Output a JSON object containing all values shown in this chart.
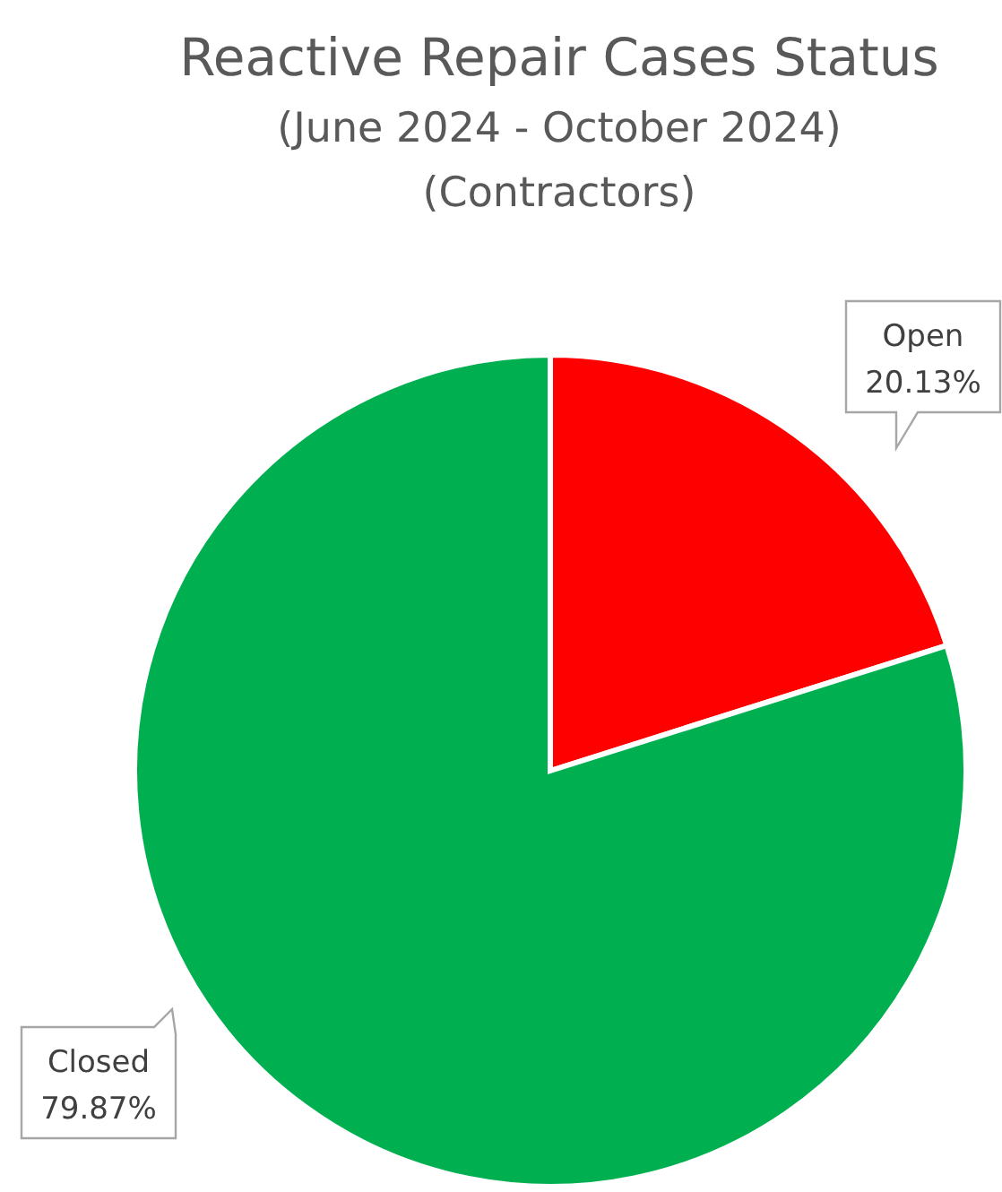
{
  "chart_data": {
    "type": "pie",
    "title": "Reactive Repair Cases Status",
    "subtitle": "(June 2024 - October 2024)\n(Contractors)",
    "categories": [
      "Open",
      "Closed"
    ],
    "values": [
      20.13,
      79.87
    ],
    "value_labels": [
      "20.13%",
      "79.87%"
    ],
    "colors": [
      "#ff0000",
      "#00b050"
    ]
  }
}
